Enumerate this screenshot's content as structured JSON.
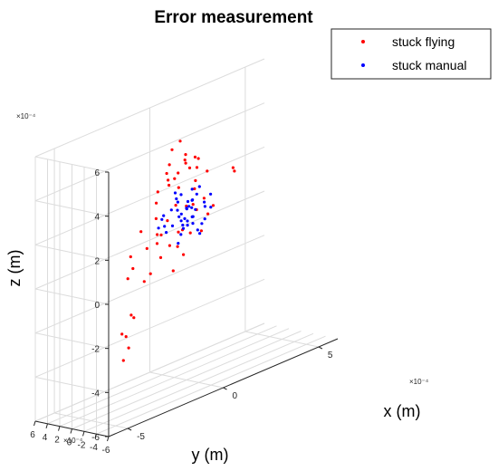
{
  "chart_data": {
    "type": "scatter",
    "title": "Error measurement",
    "xlabel": "x (m)",
    "ylabel": "y (m)",
    "zlabel": "z (m)",
    "axis_exponent_label": "×10⁻⁴",
    "xticks": [
      "5",
      "0",
      "-5"
    ],
    "yticks": [
      "6",
      "4",
      "2",
      "0",
      "-2",
      "-4",
      "-6"
    ],
    "zticks": [
      "6",
      "4",
      "2",
      "0",
      "-2",
      "-4",
      "-6"
    ],
    "xlim": [
      -6,
      6
    ],
    "ylim": [
      -6,
      6
    ],
    "zlim": [
      -6,
      6
    ],
    "grid": true,
    "legend_position": "top-right",
    "series": [
      {
        "name": "stuck flying",
        "color": "#ff0000",
        "points": [
          [
            0.2,
            3.0,
            4.2
          ],
          [
            0.5,
            2.6,
            4.5
          ],
          [
            0.4,
            1.4,
            4.0
          ],
          [
            0.3,
            1.2,
            3.8
          ],
          [
            0.0,
            2.8,
            3.6
          ],
          [
            0.6,
            2.0,
            3.5
          ],
          [
            0.9,
            1.4,
            3.7
          ],
          [
            0.2,
            2.0,
            3.2
          ],
          [
            1.2,
            1.8,
            3.5
          ],
          [
            -0.2,
            2.4,
            3.0
          ],
          [
            0.4,
            3.2,
            2.8
          ],
          [
            -0.4,
            2.0,
            3.4
          ],
          [
            0.8,
            0.8,
            3.3
          ],
          [
            1.0,
            2.6,
            3.1
          ],
          [
            -0.6,
            1.0,
            3.0
          ],
          [
            0.1,
            1.6,
            2.6
          ],
          [
            -0.8,
            2.2,
            2.7
          ],
          [
            1.4,
            1.0,
            2.9
          ],
          [
            0.6,
            0.4,
            2.8
          ],
          [
            -1.2,
            1.2,
            2.4
          ],
          [
            3.4,
            3.0,
            2.2
          ],
          [
            3.5,
            3.1,
            2.0
          ],
          [
            2.2,
            4.0,
            1.2
          ],
          [
            -0.5,
            0.2,
            2.1
          ],
          [
            -1.4,
            0.6,
            1.8
          ],
          [
            -0.2,
            -0.6,
            2.0
          ],
          [
            -1.0,
            0.0,
            1.6
          ],
          [
            0.4,
            -0.4,
            1.6
          ],
          [
            -2.0,
            1.2,
            1.4
          ],
          [
            -1.6,
            -0.2,
            1.2
          ],
          [
            0.8,
            -1.0,
            1.3
          ],
          [
            -0.6,
            -1.2,
            1.1
          ],
          [
            -2.2,
            -0.4,
            0.8
          ],
          [
            -1.2,
            -1.0,
            0.6
          ],
          [
            -2.8,
            0.4,
            0.6
          ],
          [
            0.2,
            -1.8,
            0.8
          ],
          [
            -1.8,
            -1.4,
            0.3
          ],
          [
            -3.0,
            -0.6,
            0.2
          ],
          [
            -0.8,
            -2.0,
            0.1
          ],
          [
            -2.4,
            -1.6,
            -0.2
          ],
          [
            -1.2,
            0.4,
            1.0
          ],
          [
            0.6,
            0.8,
            1.7
          ],
          [
            -0.3,
            0.4,
            0.8
          ],
          [
            1.4,
            0.0,
            1.4
          ],
          [
            1.0,
            1.8,
            2.2
          ],
          [
            -1.4,
            -2.2,
            -0.4
          ],
          [
            -2.6,
            -1.2,
            -0.5
          ],
          [
            -3.2,
            -0.4,
            -0.2
          ],
          [
            0.2,
            0.0,
            0.6
          ],
          [
            -0.6,
            -0.4,
            0.3
          ],
          [
            -1.8,
            -0.8,
            0.9
          ],
          [
            -3.6,
            -2.2,
            -1.6
          ],
          [
            -3.4,
            -2.0,
            -1.8
          ],
          [
            -4.0,
            -2.6,
            -2.4
          ],
          [
            -4.6,
            -3.8,
            -2.0
          ],
          [
            -3.8,
            -2.4,
            -3.0
          ],
          [
            -4.2,
            -2.8,
            -3.4
          ]
        ]
      },
      {
        "name": "stuck manual",
        "color": "#0000ff",
        "points": [
          [
            0.0,
            0.0,
            1.8
          ],
          [
            0.4,
            -0.2,
            1.6
          ],
          [
            -0.3,
            0.3,
            1.5
          ],
          [
            0.2,
            0.4,
            2.0
          ],
          [
            -0.4,
            -0.4,
            1.7
          ],
          [
            0.6,
            0.2,
            2.2
          ],
          [
            -0.6,
            0.6,
            1.9
          ],
          [
            0.1,
            -0.6,
            1.4
          ],
          [
            -0.2,
            0.8,
            2.1
          ],
          [
            0.8,
            -0.4,
            1.8
          ],
          [
            -0.8,
            -0.2,
            1.3
          ],
          [
            0.3,
            0.9,
            1.6
          ],
          [
            0.0,
            -0.9,
            2.2
          ],
          [
            -0.5,
            0.1,
            2.4
          ],
          [
            0.5,
            0.5,
            1.2
          ],
          [
            -0.9,
            0.5,
            1.0
          ],
          [
            0.7,
            -0.8,
            1.1
          ],
          [
            -0.1,
            0.2,
            0.9
          ],
          [
            0.2,
            -0.3,
            2.6
          ],
          [
            -0.7,
            -0.7,
            2.0
          ],
          [
            1.0,
            0.1,
            1.5
          ],
          [
            -1.0,
            0.9,
            1.6
          ],
          [
            0.4,
            1.1,
            1.0
          ],
          [
            -0.3,
            -1.1,
            1.2
          ],
          [
            0.9,
            0.7,
            2.4
          ],
          [
            -0.2,
            0.0,
            1.1
          ],
          [
            0.0,
            0.3,
            1.3
          ],
          [
            0.3,
            -0.1,
            1.0
          ],
          [
            -0.4,
            0.6,
            2.6
          ],
          [
            1.2,
            -0.2,
            2.0
          ],
          [
            -1.2,
            0.0,
            1.9
          ],
          [
            0.6,
            0.9,
            1.9
          ],
          [
            -0.6,
            -1.0,
            1.5
          ],
          [
            0.1,
            1.2,
            2.3
          ],
          [
            0.8,
            0.0,
            0.8
          ],
          [
            -0.8,
            1.1,
            1.2
          ],
          [
            0.2,
            -1.2,
            0.8
          ],
          [
            -0.1,
            0.6,
            0.6
          ],
          [
            0.5,
            -0.6,
            0.5
          ],
          [
            -0.5,
            -0.2,
            0.4
          ],
          [
            1.4,
            0.4,
            1.3
          ],
          [
            -1.4,
            0.2,
            1.4
          ],
          [
            0.0,
            -0.4,
            1.9
          ],
          [
            0.3,
            0.1,
            1.7
          ]
        ]
      }
    ]
  }
}
